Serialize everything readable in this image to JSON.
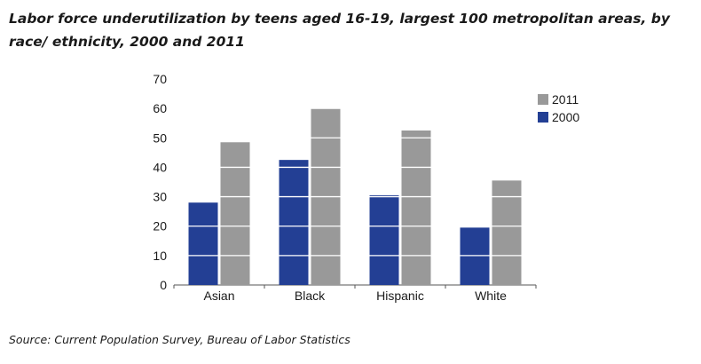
{
  "chart_data": {
    "type": "bar",
    "title": "Labor force underutilization by teens aged 16-19, largest 100 metropolitan areas, by race/ ethnicity, 2000 and 2011",
    "categories": [
      "Asian",
      "Black",
      "Hispanic",
      "White"
    ],
    "series": [
      {
        "name": "2000",
        "values": [
          28,
          42.5,
          30.5,
          19.5
        ],
        "color": "#233f94"
      },
      {
        "name": "2011",
        "values": [
          48.5,
          60,
          52.5,
          35.5
        ],
        "color": "#999999"
      }
    ],
    "xlabel": "",
    "ylabel": "",
    "ylim": [
      0,
      70
    ],
    "yticks": [
      0,
      10,
      20,
      30,
      40,
      50,
      60,
      70
    ],
    "grid": "white lines across bars",
    "legend": {
      "position": "top-right",
      "order": [
        "2011",
        "2000"
      ]
    }
  },
  "footer": {
    "source": "Source: Current Population Survey, Bureau of Labor Statistics"
  }
}
